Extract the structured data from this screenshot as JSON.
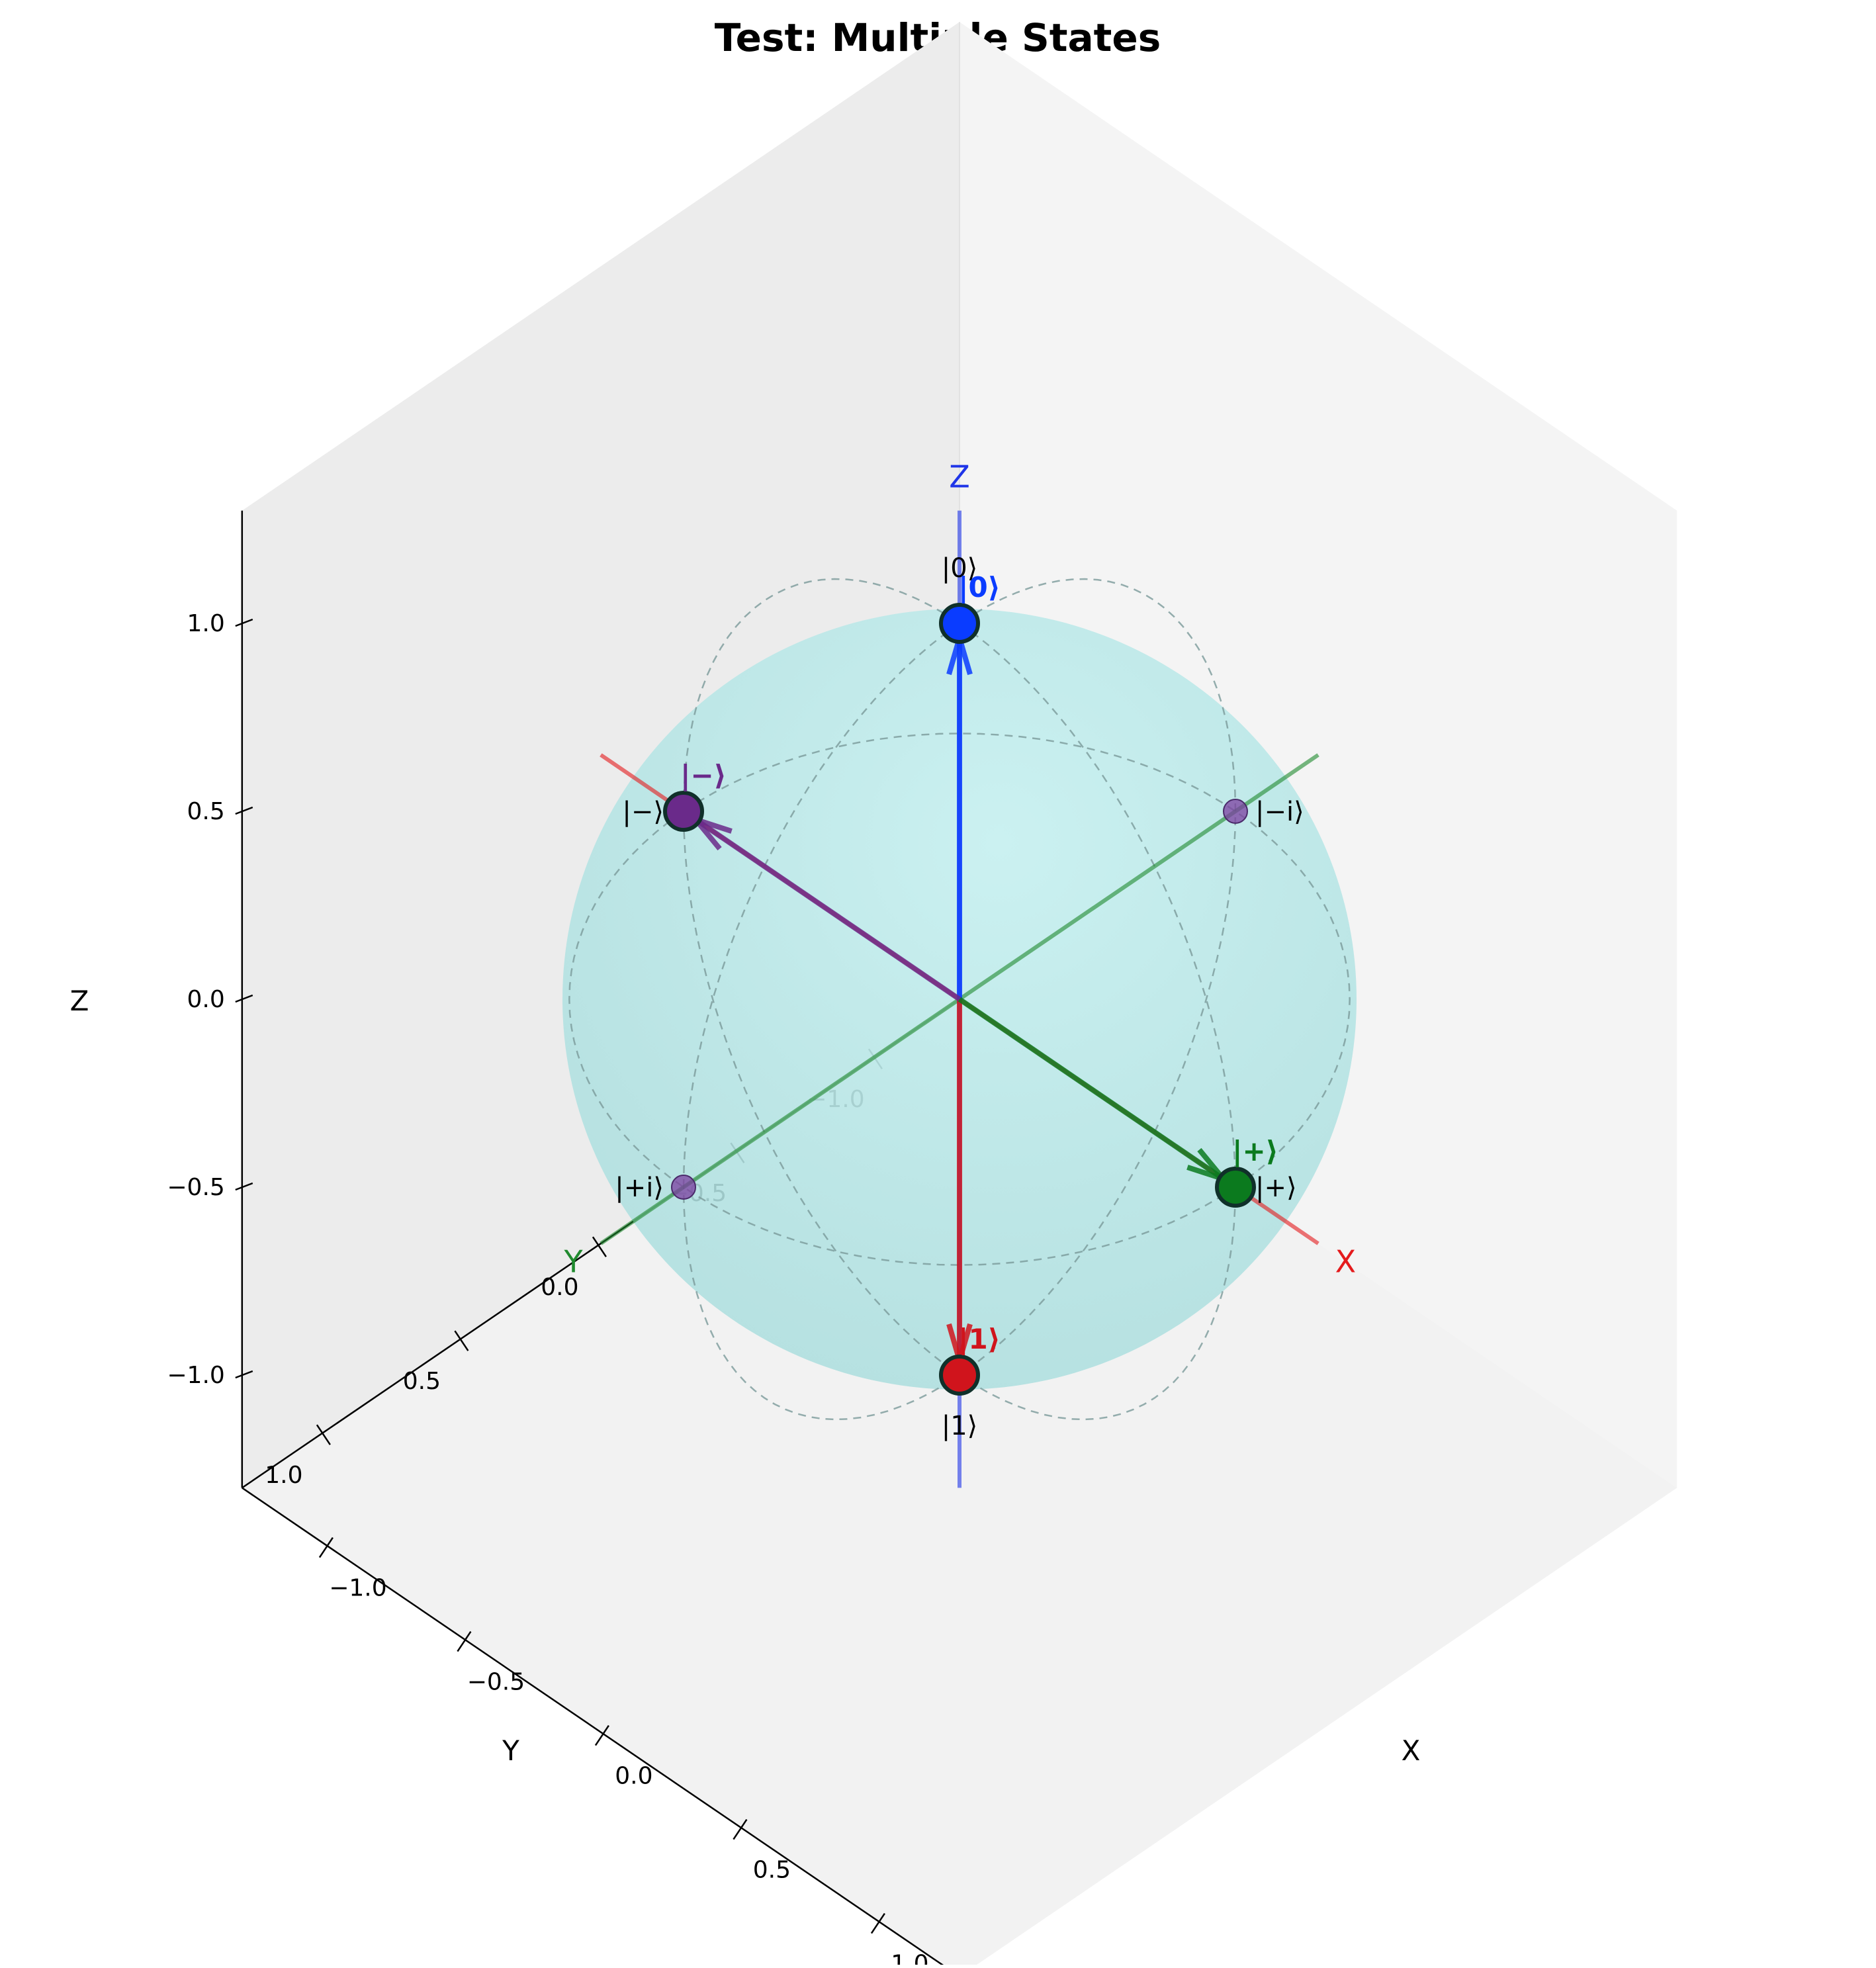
{
  "chart_data": {
    "type": "scatter",
    "subtype": "bloch-sphere-3d",
    "title": "Test: Multiple States",
    "axes": {
      "x": {
        "label": "X",
        "lim": [
          -1.3,
          1.3
        ],
        "ticks": [
          -1.0,
          -0.5,
          0.0,
          0.5,
          1.0
        ],
        "tick_labels": [
          "−1.0",
          "−0.5",
          "0.0",
          "0.5",
          "1.0"
        ]
      },
      "y": {
        "label": "Y",
        "lim": [
          -1.3,
          1.3
        ],
        "ticks": [
          -1.0,
          -0.5,
          0.0,
          0.5,
          1.0
        ],
        "tick_labels": [
          "−1.0",
          "−0.5",
          "0.0",
          "0.5",
          "1.0"
        ]
      },
      "z": {
        "label": "Z",
        "lim": [
          -1.3,
          1.3
        ],
        "ticks": [
          -1.0,
          -0.5,
          0.0,
          0.5,
          1.0
        ],
        "tick_labels": [
          "−1.0",
          "−0.5",
          "0.0",
          "0.5",
          "1.0"
        ]
      }
    },
    "grid": false,
    "sphere": {
      "radius": 1.0,
      "color": "#9fe3e3",
      "wire_color": "#7a9a9a"
    },
    "axis_lines": [
      {
        "label": "X",
        "color": "#e41a1c",
        "from": [
          -1.3,
          0,
          0
        ],
        "to": [
          1.3,
          0,
          0
        ]
      },
      {
        "label": "Y",
        "color": "#1f8a2e",
        "from": [
          0,
          -1.3,
          0
        ],
        "to": [
          0,
          1.3,
          0
        ]
      },
      {
        "label": "Z",
        "color": "#1f35e8",
        "from": [
          0,
          0,
          -1.3
        ],
        "to": [
          0,
          0,
          1.3
        ]
      }
    ],
    "reference_points": [
      {
        "label": "|0⟩",
        "xyz": [
          0,
          0,
          1
        ]
      },
      {
        "label": "|1⟩",
        "xyz": [
          0,
          0,
          -1
        ]
      },
      {
        "label": "|+⟩",
        "xyz": [
          1,
          0,
          0
        ]
      },
      {
        "label": "|−⟩",
        "xyz": [
          -1,
          0,
          0
        ]
      },
      {
        "label": "|+i⟩",
        "xyz": [
          0,
          1,
          0
        ]
      },
      {
        "label": "|−i⟩",
        "xyz": [
          0,
          -1,
          0
        ]
      }
    ],
    "reference_marker_color": "#7b3fa0",
    "states": [
      {
        "name": "|0⟩",
        "xyz": [
          0,
          0,
          1
        ],
        "color": "#0a3cff"
      },
      {
        "name": "|1⟩",
        "xyz": [
          0,
          0,
          -1
        ],
        "color": "#d0141c"
      },
      {
        "name": "|+⟩",
        "xyz": [
          1,
          0,
          0
        ],
        "color": "#0b7a1e"
      },
      {
        "name": "|−⟩",
        "xyz": [
          -1,
          0,
          0
        ],
        "color": "#6a2a8a"
      }
    ]
  }
}
